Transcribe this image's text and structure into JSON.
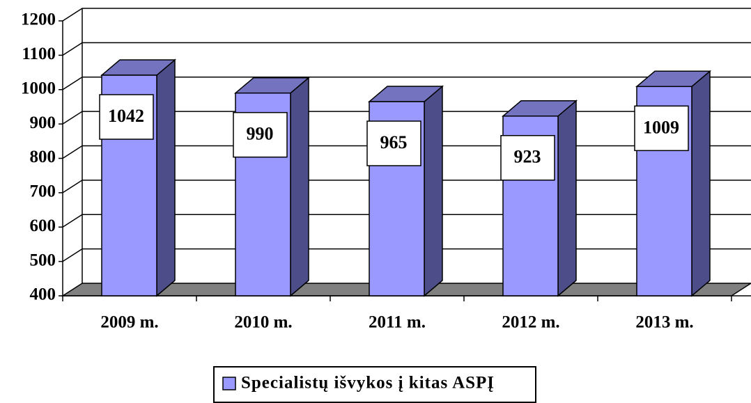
{
  "chart_data": {
    "type": "bar3d",
    "categories": [
      "2009 m.",
      "2010 m.",
      "2011 m.",
      "2012 m.",
      "2013 m."
    ],
    "series": [
      {
        "name": "Specialistų išvykos į kitas ASPĮ",
        "color": "#9999ff",
        "values": [
          1042,
          990,
          965,
          923,
          1009
        ]
      }
    ],
    "ylim": [
      400,
      1200
    ],
    "yticks": [
      400,
      500,
      600,
      700,
      800,
      900,
      1000,
      1100,
      1200
    ],
    "grid": true,
    "legend": "bottom"
  }
}
